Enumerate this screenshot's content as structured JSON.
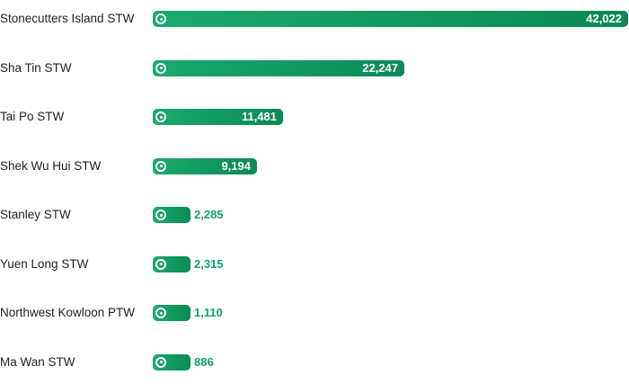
{
  "chart_data": {
    "type": "bar",
    "orientation": "horizontal",
    "categories": [
      "Stonecutters Island STW",
      "Sha Tin STW",
      "Tai Po STW",
      "Shek Wu Hui STW",
      "Stanley STW",
      "Yuen Long STW",
      "Northwest Kowloon PTW",
      "Ma Wan STW"
    ],
    "values": [
      42022,
      22247,
      11481,
      9194,
      2285,
      2315,
      1110,
      886
    ],
    "value_labels": [
      "42,022",
      "22,247",
      "11,481",
      "9,194",
      "2,285",
      "2,315",
      "1,110",
      "886"
    ],
    "title": "",
    "xlabel": "",
    "ylabel": "",
    "xlim": [
      0,
      42022
    ],
    "grid": false,
    "legend": "none",
    "colors": {
      "bar_start": "#1aaa6c",
      "bar_end": "#0b8a55",
      "label_outside": "#13a06a",
      "label_inside": "#ffffff",
      "category_text": "#222222"
    },
    "marker_icon": "target-circle-icon"
  }
}
